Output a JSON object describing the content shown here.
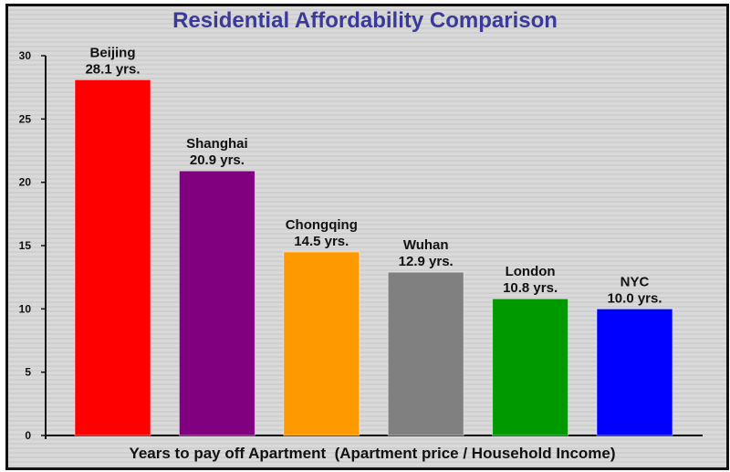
{
  "chart_data": {
    "type": "bar",
    "title": "Residential Affordability Comparison",
    "xlabel": "Years to pay off Apartment  (Apartment price / Household Income)",
    "ylabel": "",
    "ylim": [
      0,
      30
    ],
    "yticks": [
      0,
      5,
      10,
      15,
      20,
      25,
      30
    ],
    "categories": [
      "Beijing",
      "Shanghai",
      "Chongqing",
      "Wuhan",
      "London",
      "NYC"
    ],
    "values": [
      28.1,
      20.9,
      14.5,
      12.9,
      10.8,
      10.0
    ],
    "value_labels": [
      "28.1 yrs.",
      "20.9 yrs.",
      "14.5 yrs.",
      "12.9 yrs.",
      "10.8 yrs.",
      "10.0 yrs."
    ],
    "colors": [
      "#ff0000",
      "#800080",
      "#ff9900",
      "#808080",
      "#009900",
      "#0000ff"
    ],
    "grid": false,
    "legend": "none"
  }
}
